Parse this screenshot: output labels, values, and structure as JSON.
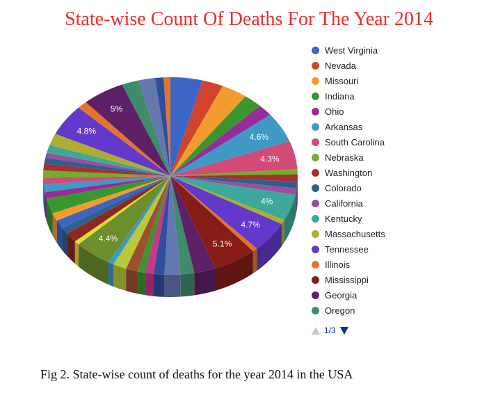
{
  "title": "State-wise Count Of Deaths For The Year 2014",
  "caption": "Fig 2. State-wise count of deaths for the year 2014 in the USA",
  "legend": {
    "page": "1/3",
    "items": [
      {
        "label": "West Virginia",
        "color": "#3b66c6"
      },
      {
        "label": "Nevada",
        "color": "#d2432b"
      },
      {
        "label": "Missouri",
        "color": "#f29c2f"
      },
      {
        "label": "Indiana",
        "color": "#3c9630"
      },
      {
        "label": "Ohio",
        "color": "#962c98"
      },
      {
        "label": "Arkansas",
        "color": "#3e99c4"
      },
      {
        "label": "South Carolina",
        "color": "#d24a76"
      },
      {
        "label": "Nebraska",
        "color": "#6fae2f"
      },
      {
        "label": "Washington",
        "color": "#a3322c"
      },
      {
        "label": "Colorado",
        "color": "#2f5f8e"
      },
      {
        "label": "California",
        "color": "#9a4ea0"
      },
      {
        "label": "Kentucky",
        "color": "#3ea89a"
      },
      {
        "label": "Massachusetts",
        "color": "#adad32"
      },
      {
        "label": "Tennessee",
        "color": "#6339cb"
      },
      {
        "label": "Illinois",
        "color": "#e0752c"
      },
      {
        "label": "Mississippi",
        "color": "#861d16"
      },
      {
        "label": "Georgia",
        "color": "#5e2067"
      },
      {
        "label": "Oregon",
        "color": "#3f8c6a"
      }
    ]
  },
  "chart_data": {
    "type": "pie",
    "title": "State-wise Count Of Deaths For The Year 2014",
    "legend_position": "right",
    "slices": [
      {
        "label": "West Virginia",
        "value": 3.8,
        "color": "#3b66c6"
      },
      {
        "label": "Nevada",
        "value": 2.5,
        "color": "#d2432b"
      },
      {
        "label": "Missouri",
        "value": 3.1,
        "color": "#f29c2f"
      },
      {
        "label": "Indiana",
        "value": 2.2,
        "color": "#3c9630"
      },
      {
        "label": "Ohio",
        "value": 1.8,
        "color": "#962c98"
      },
      {
        "label": "Arkansas",
        "value": 4.6,
        "color": "#3e99c4",
        "data_label": "4.6%"
      },
      {
        "label": "South Carolina",
        "value": 4.3,
        "color": "#d24a76",
        "data_label": "4.3%"
      },
      {
        "label": "Nebraska",
        "value": 0.8,
        "color": "#6fae2f"
      },
      {
        "label": "Washington",
        "value": 1.1,
        "color": "#a3322c"
      },
      {
        "label": "Colorado",
        "value": 1.0,
        "color": "#2f5f8e"
      },
      {
        "label": "California",
        "value": 1.0,
        "color": "#9a4ea0"
      },
      {
        "label": "Kentucky",
        "value": 4.0,
        "color": "#3ea89a",
        "data_label": "4%"
      },
      {
        "label": "Massachusetts",
        "value": 0.7,
        "color": "#adad32"
      },
      {
        "label": "Tennessee",
        "value": 4.7,
        "color": "#6339cb",
        "data_label": "4.7%"
      },
      {
        "label": "Illinois",
        "value": 0.6,
        "color": "#e0752c"
      },
      {
        "label": "Mississippi",
        "value": 5.1,
        "color": "#861d16",
        "data_label": "5.1%"
      },
      {
        "label": "Georgia",
        "value": 2.6,
        "color": "#5e2067"
      },
      {
        "label": "Oregon",
        "value": 1.6,
        "color": "#3f8c6a"
      },
      {
        "label": "",
        "value": 1.9,
        "color": "#6577b0"
      },
      {
        "label": "",
        "value": 1.3,
        "color": "#2f4f9e"
      },
      {
        "label": "",
        "value": 1.0,
        "color": "#c7378a"
      },
      {
        "label": "",
        "value": 0.9,
        "color": "#3c9630"
      },
      {
        "label": "",
        "value": 1.4,
        "color": "#9e4f30"
      },
      {
        "label": "",
        "value": 1.6,
        "color": "#b9c93a"
      },
      {
        "label": "",
        "value": 0.7,
        "color": "#3e99c4"
      },
      {
        "label": "",
        "value": 4.4,
        "color": "#6b8f2c",
        "data_label": "4.4%"
      },
      {
        "label": "",
        "value": 0.6,
        "color": "#e8db34"
      },
      {
        "label": "",
        "value": 1.5,
        "color": "#8a2a1f"
      },
      {
        "label": "",
        "value": 1.0,
        "color": "#2f5f8e"
      },
      {
        "label": "",
        "value": 1.3,
        "color": "#3b66c6"
      },
      {
        "label": "",
        "value": 1.2,
        "color": "#f29c2f"
      },
      {
        "label": "",
        "value": 2.3,
        "color": "#3c9630"
      },
      {
        "label": "",
        "value": 1.0,
        "color": "#962c98"
      },
      {
        "label": "",
        "value": 1.2,
        "color": "#3e99c4"
      },
      {
        "label": "",
        "value": 1.0,
        "color": "#d24a76"
      },
      {
        "label": "",
        "value": 1.1,
        "color": "#6fae2f"
      },
      {
        "label": "",
        "value": 1.0,
        "color": "#a3322c"
      },
      {
        "label": "",
        "value": 0.9,
        "color": "#2f5f8e"
      },
      {
        "label": "",
        "value": 0.8,
        "color": "#9a4ea0"
      },
      {
        "label": "",
        "value": 1.2,
        "color": "#3ea89a"
      },
      {
        "label": "",
        "value": 1.8,
        "color": "#adad32"
      },
      {
        "label": "",
        "value": 4.8,
        "color": "#6339cb",
        "data_label": "4.8%"
      },
      {
        "label": "",
        "value": 1.2,
        "color": "#e0752c"
      },
      {
        "label": "",
        "value": 5.0,
        "color": "#5e2067",
        "data_label": "5%"
      },
      {
        "label": "",
        "value": 2.0,
        "color": "#3f8c6a"
      },
      {
        "label": "",
        "value": 2.0,
        "color": "#6577b0"
      },
      {
        "label": "",
        "value": 1.0,
        "color": "#2f4f9e"
      },
      {
        "label": "",
        "value": 0.8,
        "color": "#e0752c"
      }
    ]
  }
}
